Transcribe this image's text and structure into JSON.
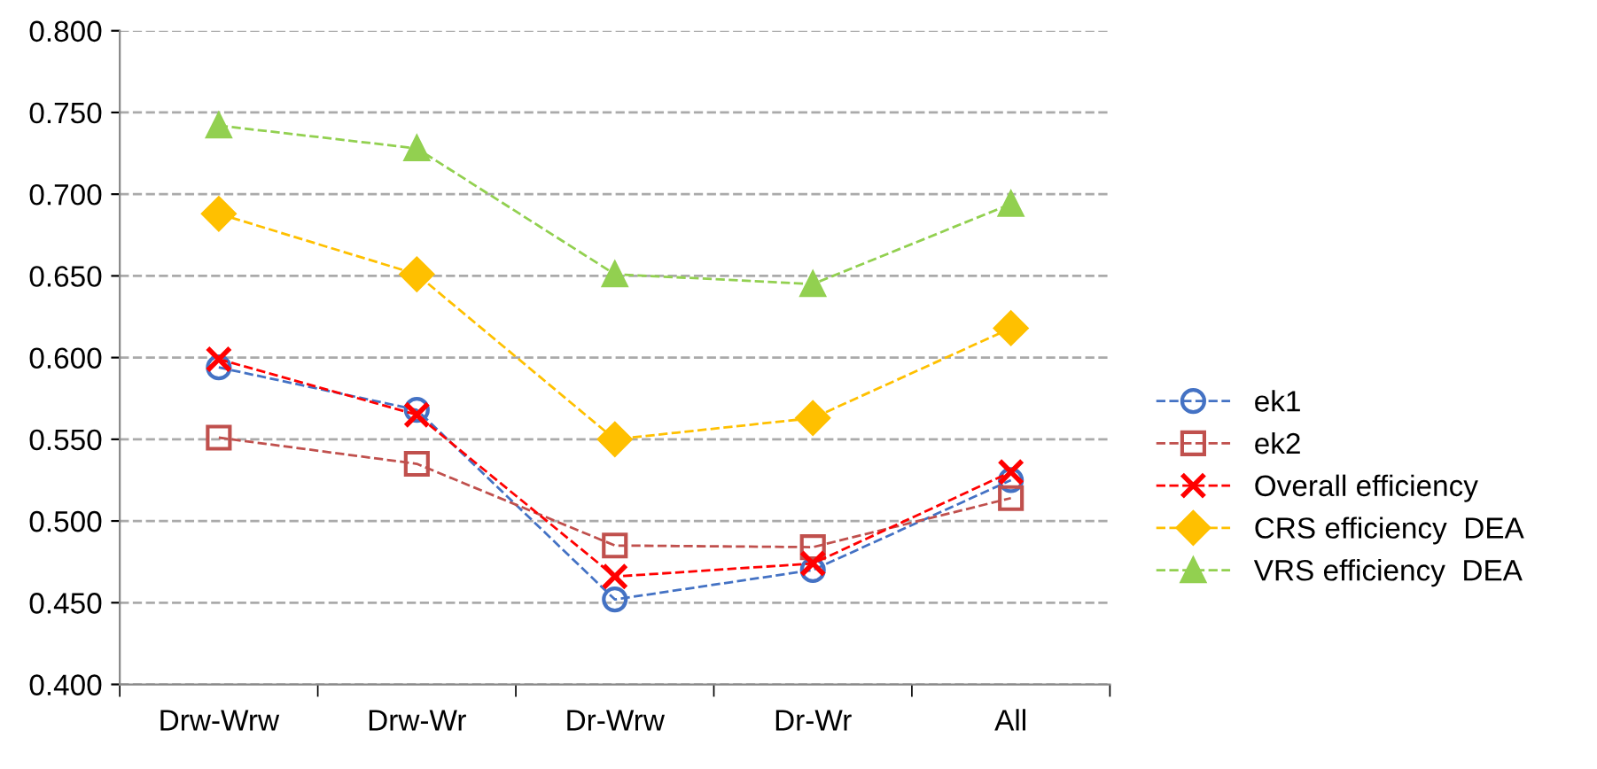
{
  "chart_data": {
    "type": "line",
    "categories": [
      "Drw-Wrw",
      "Drw-Wr",
      "Dr-Wrw",
      "Dr-Wr",
      "All"
    ],
    "series": [
      {
        "name": "ek1",
        "color": "#4472c4",
        "marker": "circle",
        "line_style": "dashed",
        "values": [
          0.594,
          0.568,
          0.452,
          0.47,
          0.525
        ]
      },
      {
        "name": "ek2",
        "color": "#c0504d",
        "marker": "square",
        "line_style": "dashed",
        "values": [
          0.551,
          0.535,
          0.485,
          0.484,
          0.514
        ]
      },
      {
        "name": "Overall efficiency",
        "color": "#ff0000",
        "marker": "cross",
        "line_style": "dashed",
        "values": [
          0.599,
          0.565,
          0.466,
          0.474,
          0.53
        ]
      },
      {
        "name": "CRS efficiency  DEA",
        "color": "#ffc000",
        "marker": "diamond",
        "line_style": "dashed",
        "values": [
          0.688,
          0.651,
          0.55,
          0.563,
          0.618
        ]
      },
      {
        "name": "VRS efficiency  DEA",
        "color": "#92d050",
        "marker": "triangle",
        "line_style": "dashed",
        "values": [
          0.742,
          0.728,
          0.651,
          0.645,
          0.694
        ]
      }
    ],
    "ylim": [
      0.4,
      0.8
    ],
    "yticks": [
      {
        "value": 0.4,
        "label": "0.400"
      },
      {
        "value": 0.45,
        "label": "0.450"
      },
      {
        "value": 0.5,
        "label": "0.500"
      },
      {
        "value": 0.55,
        "label": "0.550"
      },
      {
        "value": 0.6,
        "label": "0.600"
      },
      {
        "value": 0.65,
        "label": "0.650"
      },
      {
        "value": 0.7,
        "label": "0.700"
      },
      {
        "value": 0.75,
        "label": "0.750"
      },
      {
        "value": 0.8,
        "label": "0.800"
      }
    ],
    "grid": "y",
    "legend": "right"
  }
}
